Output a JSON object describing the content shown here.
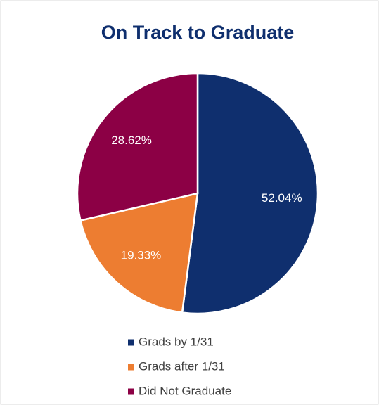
{
  "chart_data": {
    "type": "pie",
    "title": "On Track to Graduate",
    "categories": [
      "Grads by 1/31",
      "Grads after 1/31",
      "Did Not Graduate"
    ],
    "values": [
      52.04,
      19.33,
      28.62
    ],
    "value_labels": [
      "52.04%",
      "19.33%",
      "28.62%"
    ],
    "colors": [
      "#0f2f6e",
      "#ed7d31",
      "#8c0045"
    ]
  }
}
